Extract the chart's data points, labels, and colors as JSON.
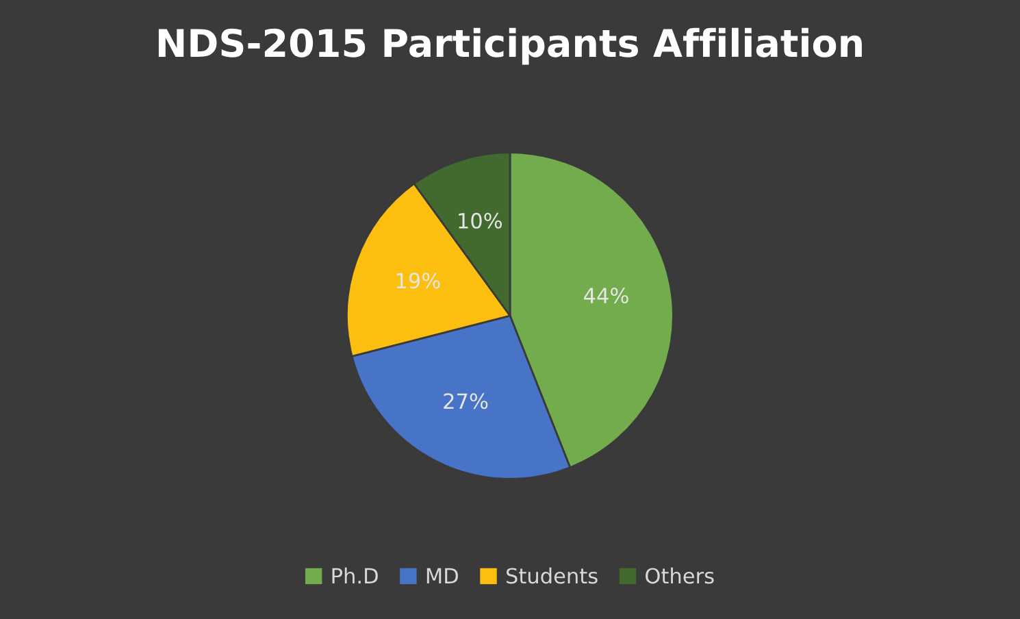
{
  "chart_data": {
    "type": "pie",
    "title": "NDS-2015 Participants Affiliation",
    "categories": [
      "Ph.D",
      "MD",
      "Students",
      "Others"
    ],
    "values": [
      44,
      27,
      19,
      10
    ],
    "colors": [
      "#72ac4d",
      "#4874c8",
      "#fcbf10",
      "#436a2e"
    ],
    "value_labels": [
      "44%",
      "27%",
      "19%",
      "10%"
    ],
    "legend": "bottom"
  }
}
